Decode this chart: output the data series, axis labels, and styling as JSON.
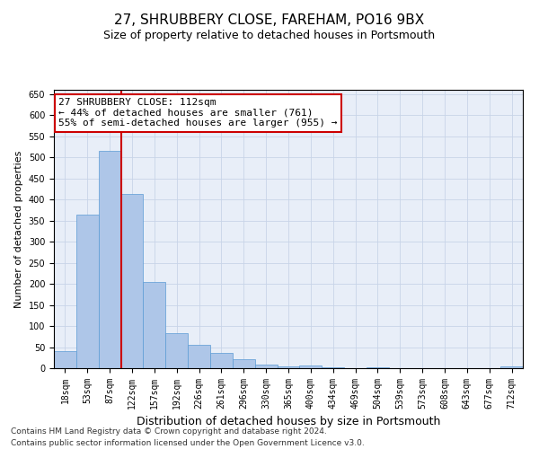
{
  "title": "27, SHRUBBERY CLOSE, FAREHAM, PO16 9BX",
  "subtitle": "Size of property relative to detached houses in Portsmouth",
  "xlabel": "Distribution of detached houses by size in Portsmouth",
  "ylabel": "Number of detached properties",
  "categories": [
    "18sqm",
    "53sqm",
    "87sqm",
    "122sqm",
    "157sqm",
    "192sqm",
    "226sqm",
    "261sqm",
    "296sqm",
    "330sqm",
    "365sqm",
    "400sqm",
    "434sqm",
    "469sqm",
    "504sqm",
    "539sqm",
    "573sqm",
    "608sqm",
    "643sqm",
    "677sqm",
    "712sqm"
  ],
  "values": [
    40,
    365,
    515,
    412,
    205,
    82,
    55,
    37,
    21,
    9,
    5,
    6,
    2,
    1,
    2,
    0,
    1,
    0,
    0,
    0,
    5
  ],
  "bar_color": "#aec6e8",
  "bar_edge_color": "#5b9bd5",
  "vline_x_idx": 2.5,
  "vline_color": "#cc0000",
  "annotation_line1": "27 SHRUBBERY CLOSE: 112sqm",
  "annotation_line2": "← 44% of detached houses are smaller (761)",
  "annotation_line3": "55% of semi-detached houses are larger (955) →",
  "annotation_box_color": "#ffffff",
  "annotation_box_edge_color": "#cc0000",
  "ylim": [
    0,
    660
  ],
  "yticks": [
    0,
    50,
    100,
    150,
    200,
    250,
    300,
    350,
    400,
    450,
    500,
    550,
    600,
    650
  ],
  "grid_color": "#c8d4e8",
  "footer_line1": "Contains HM Land Registry data © Crown copyright and database right 2024.",
  "footer_line2": "Contains public sector information licensed under the Open Government Licence v3.0.",
  "title_fontsize": 11,
  "subtitle_fontsize": 9,
  "xlabel_fontsize": 9,
  "ylabel_fontsize": 8,
  "tick_fontsize": 7,
  "annotation_fontsize": 8,
  "footer_fontsize": 6.5
}
